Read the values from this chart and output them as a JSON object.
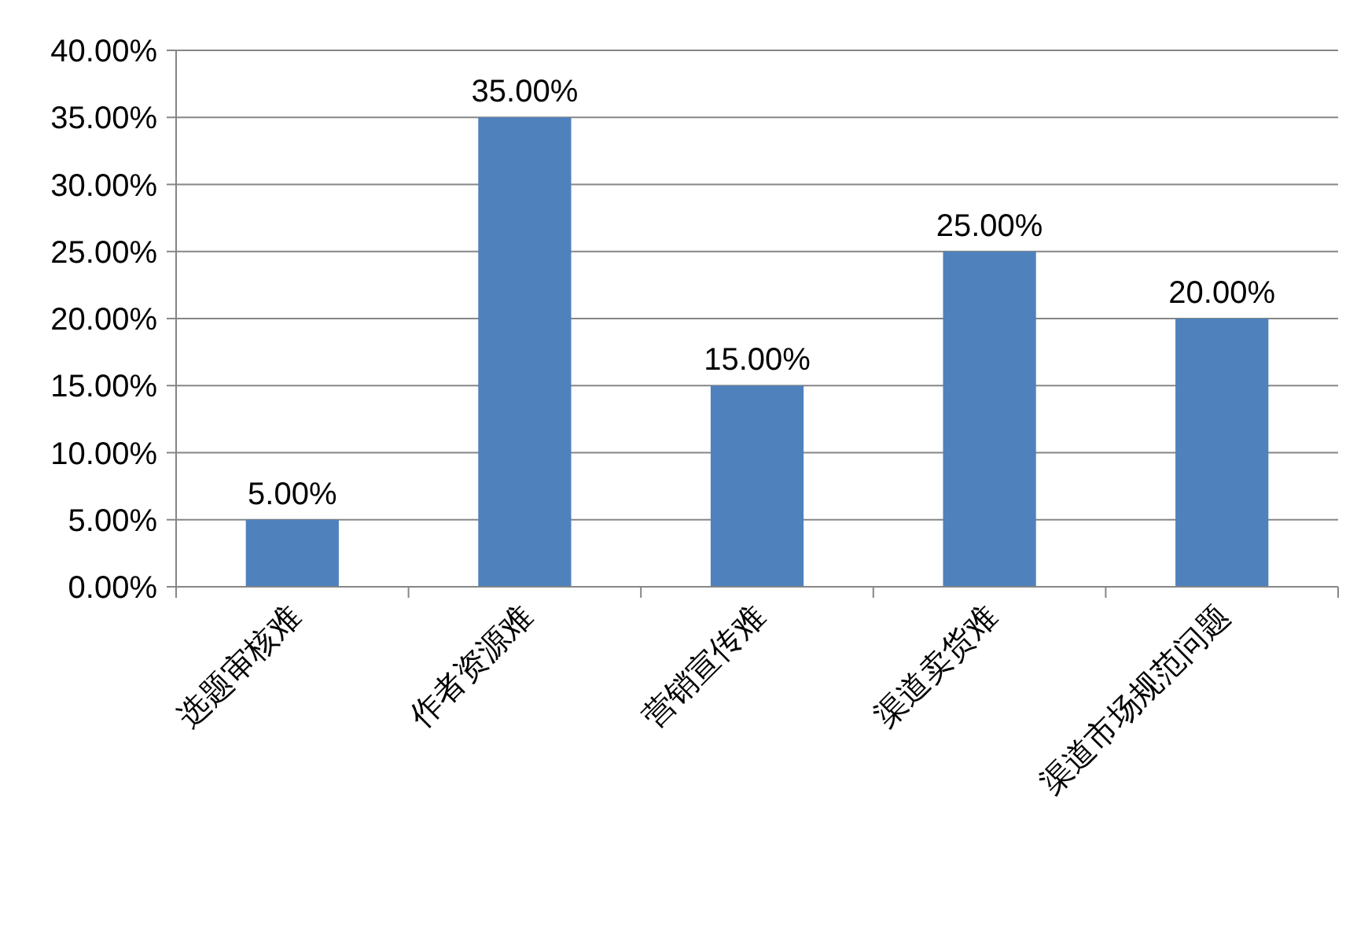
{
  "chart_data": {
    "type": "bar",
    "categories": [
      "选题审核难",
      "作者资源难",
      "营销宣传难",
      "渠道卖货难",
      "渠道市场规范问题"
    ],
    "values": [
      5,
      35,
      15,
      25,
      20
    ],
    "value_labels": [
      "5.00%",
      "35.00%",
      "15.00%",
      "25.00%",
      "20.00%"
    ],
    "color": "#4f81bd",
    "ylim": [
      0,
      40
    ],
    "yticks": [
      {
        "value": 0,
        "label": "0.00%"
      },
      {
        "value": 5,
        "label": "5.00%"
      },
      {
        "value": 10,
        "label": "10.00%"
      },
      {
        "value": 15,
        "label": "15.00%"
      },
      {
        "value": 20,
        "label": "20.00%"
      },
      {
        "value": 25,
        "label": "25.00%"
      },
      {
        "value": 30,
        "label": "30.00%"
      },
      {
        "value": 35,
        "label": "35.00%"
      },
      {
        "value": 40,
        "label": "40.00%"
      }
    ],
    "grid": "y"
  }
}
